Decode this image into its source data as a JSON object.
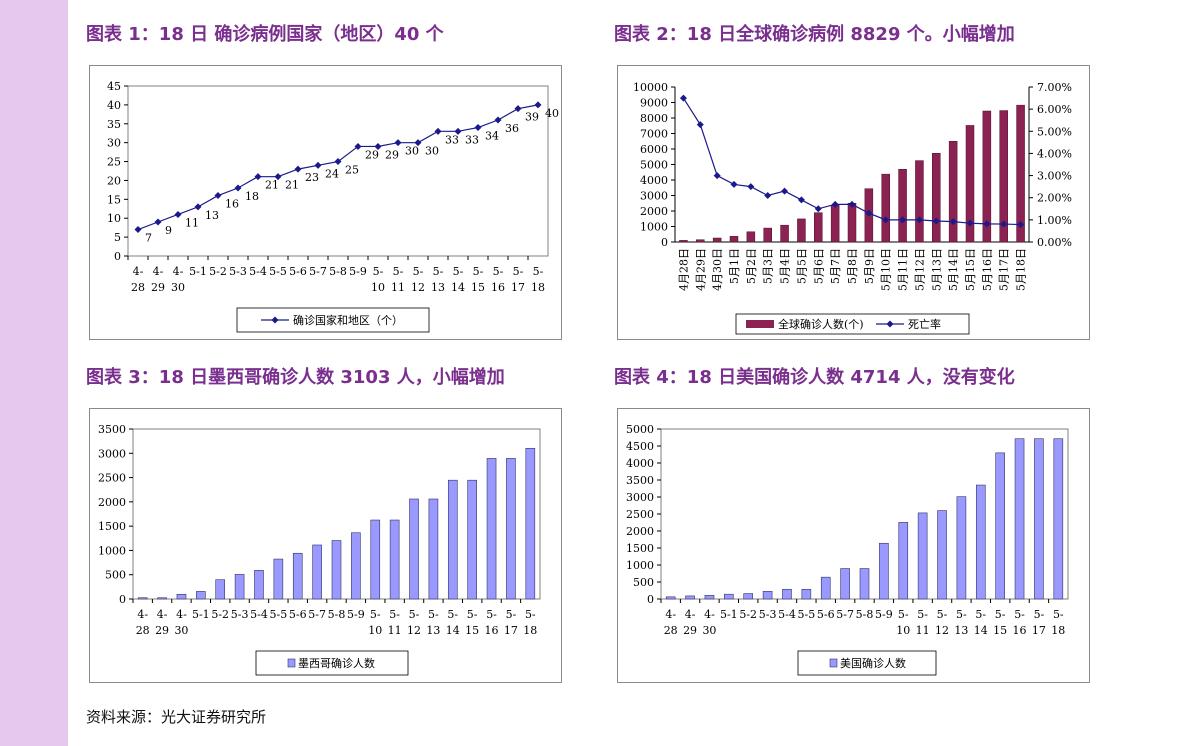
{
  "colors": {
    "sidebar": "#e6c8ee",
    "title": "#7a2e8e",
    "line": "#1a1a8c",
    "bar_blue": "#9999ff",
    "bar_maroon": "#8b2252",
    "plot_border": "#808080"
  },
  "source_text": "资料来源：光大证券研究所",
  "charts": {
    "c1": {
      "title": "图表 1：18 日 确诊病例国家（地区）40 个"
    },
    "c2": {
      "title": "图表 2：18 日全球确诊病例 8829 个。小幅增加"
    },
    "c3": {
      "title": "图表 3：18 日墨西哥确诊人数 3103 人，小幅增加"
    },
    "c4": {
      "title": "图表 4：18 日美国确诊人数 4714 人，没有变化"
    }
  },
  "chart_data": [
    {
      "type": "line",
      "categories": [
        [
          "4-",
          "28"
        ],
        [
          "4-",
          "29"
        ],
        [
          "4-",
          "30"
        ],
        [
          "5-1",
          ""
        ],
        [
          "5-2",
          ""
        ],
        [
          "5-3",
          ""
        ],
        [
          "5-4",
          ""
        ],
        [
          "5-5",
          ""
        ],
        [
          "5-6",
          ""
        ],
        [
          "5-7",
          ""
        ],
        [
          "5-8",
          ""
        ],
        [
          "5-9",
          ""
        ],
        [
          "5-",
          "10"
        ],
        [
          "5-",
          "11"
        ],
        [
          "5-",
          "12"
        ],
        [
          "5-",
          "13"
        ],
        [
          "5-",
          "14"
        ],
        [
          "5-",
          "15"
        ],
        [
          "5-",
          "16"
        ],
        [
          "5-",
          "17"
        ],
        [
          "5-",
          "18"
        ]
      ],
      "series": [
        {
          "name": "确诊国家和地区（个）",
          "values": [
            7,
            9,
            11,
            13,
            16,
            18,
            21,
            21,
            23,
            24,
            25,
            29,
            29,
            30,
            30,
            33,
            33,
            34,
            36,
            39,
            40
          ]
        }
      ],
      "ylim": [
        0,
        45
      ],
      "yticks": [
        0,
        5,
        10,
        15,
        20,
        25,
        30,
        35,
        40,
        45
      ],
      "legend": "bottom",
      "grid": false
    },
    {
      "type": "bar+line",
      "categories": [
        "4月28日",
        "4月29日",
        "4月30日",
        "5月1日",
        "5月2日",
        "5月3日",
        "5月4日",
        "5月5日",
        "5月6日",
        "5月7日",
        "5月8日",
        "5月9日",
        "5月10日",
        "5月11日",
        "5月12日",
        "5月13日",
        "5月14日",
        "5月15日",
        "5月16日",
        "5月17日",
        "5月18日"
      ],
      "series": [
        {
          "name": "全球确诊人数(个)",
          "type": "bar",
          "axis": "left",
          "values": [
            105,
            148,
            257,
            367,
            658,
            898,
            1085,
            1490,
            1893,
            2371,
            2500,
            3440,
            4379,
            4694,
            5251,
            5728,
            6497,
            7520,
            8451,
            8480,
            8829
          ]
        },
        {
          "name": "死亡率",
          "type": "line",
          "axis": "right",
          "values": [
            0.065,
            0.053,
            0.03,
            0.026,
            0.025,
            0.021,
            0.023,
            0.019,
            0.015,
            0.017,
            0.017,
            0.013,
            0.01,
            0.01,
            0.01,
            0.0095,
            0.0092,
            0.0085,
            0.0082,
            0.0081,
            0.0079
          ]
        }
      ],
      "ylim_left": [
        0,
        10000
      ],
      "yticks_left": [
        0,
        1000,
        2000,
        3000,
        4000,
        5000,
        6000,
        7000,
        8000,
        9000,
        10000
      ],
      "ylim_right": [
        0,
        0.07
      ],
      "yticks_right": [
        "0.00%",
        "1.00%",
        "2.00%",
        "3.00%",
        "4.00%",
        "5.00%",
        "6.00%",
        "7.00%"
      ],
      "legend": "bottom",
      "grid": false
    },
    {
      "type": "bar",
      "categories": [
        [
          "4-",
          "28"
        ],
        [
          "4-",
          "29"
        ],
        [
          "4-",
          "30"
        ],
        [
          "5-1",
          ""
        ],
        [
          "5-2",
          ""
        ],
        [
          "5-3",
          ""
        ],
        [
          "5-4",
          ""
        ],
        [
          "5-5",
          ""
        ],
        [
          "5-6",
          ""
        ],
        [
          "5-7",
          ""
        ],
        [
          "5-8",
          ""
        ],
        [
          "5-9",
          ""
        ],
        [
          "5-",
          "10"
        ],
        [
          "5-",
          "11"
        ],
        [
          "5-",
          "12"
        ],
        [
          "5-",
          "13"
        ],
        [
          "5-",
          "14"
        ],
        [
          "5-",
          "15"
        ],
        [
          "5-",
          "16"
        ],
        [
          "5-",
          "17"
        ],
        [
          "5-",
          "18"
        ]
      ],
      "series": [
        {
          "name": "墨西哥确诊人数",
          "values": [
            26,
            26,
            97,
            156,
            397,
            506,
            590,
            822,
            942,
            1112,
            1204,
            1364,
            1626,
            1626,
            2059,
            2059,
            2446,
            2446,
            2895,
            2895,
            3103
          ]
        }
      ],
      "ylim": [
        0,
        3500
      ],
      "yticks": [
        0,
        500,
        1000,
        1500,
        2000,
        2500,
        3000,
        3500
      ],
      "legend": "bottom",
      "grid": false
    },
    {
      "type": "bar",
      "categories": [
        [
          "4-",
          "28"
        ],
        [
          "4-",
          "29"
        ],
        [
          "4-",
          "30"
        ],
        [
          "5-1",
          ""
        ],
        [
          "5-2",
          ""
        ],
        [
          "5-3",
          ""
        ],
        [
          "5-4",
          ""
        ],
        [
          "5-5",
          ""
        ],
        [
          "5-6",
          ""
        ],
        [
          "5-7",
          ""
        ],
        [
          "5-8",
          ""
        ],
        [
          "5-9",
          ""
        ],
        [
          "5-",
          "10"
        ],
        [
          "5-",
          "11"
        ],
        [
          "5-",
          "12"
        ],
        [
          "5-",
          "13"
        ],
        [
          "5-",
          "14"
        ],
        [
          "5-",
          "15"
        ],
        [
          "5-",
          "16"
        ],
        [
          "5-",
          "17"
        ],
        [
          "5-",
          "18"
        ]
      ],
      "series": [
        {
          "name": "美国确诊人数",
          "values": [
            64,
            91,
            109,
            141,
            160,
            226,
            286,
            286,
            642,
            896,
            896,
            1639,
            2254,
            2532,
            2600,
            3009,
            3352,
            4298,
            4714,
            4714,
            4714
          ]
        }
      ],
      "ylim": [
        0,
        5000
      ],
      "yticks": [
        0,
        500,
        1000,
        1500,
        2000,
        2500,
        3000,
        3500,
        4000,
        4500,
        5000
      ],
      "legend": "bottom",
      "grid": false
    }
  ]
}
